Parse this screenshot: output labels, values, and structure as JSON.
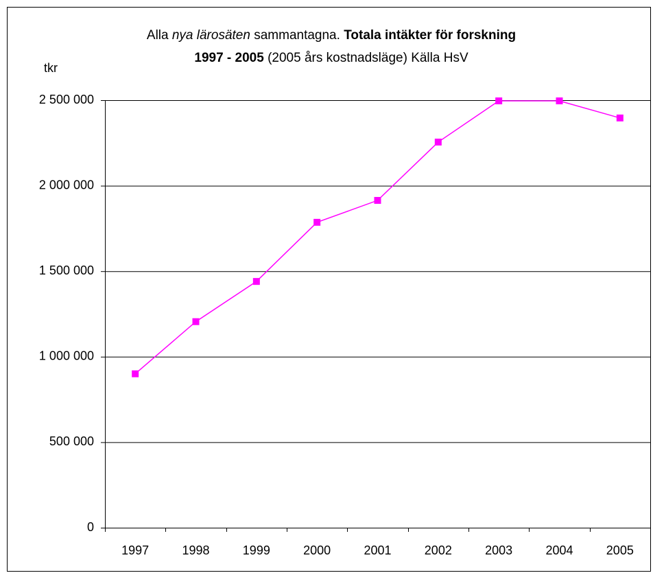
{
  "chart_data": {
    "type": "line",
    "title": [
      [
        {
          "text": "Alla ",
          "style": "normal"
        },
        {
          "text": "nya lärosäten",
          "style": "italic"
        },
        {
          "text": " sammantagna. ",
          "style": "normal"
        },
        {
          "text": "Totala intäkter för forskning",
          "style": "bold"
        }
      ],
      [
        {
          "text": "1997 - 2005",
          "style": "bold"
        },
        {
          "text": " (2005 års kostnadsläge) Källa HsV",
          "style": "normal"
        }
      ]
    ],
    "y_label": "tkr",
    "categories": [
      "1997",
      "1998",
      "1999",
      "2000",
      "2001",
      "2002",
      "2003",
      "2004",
      "2005"
    ],
    "series": [
      {
        "name": "Totala intäkter för forskning",
        "color": "#ff00ff",
        "values": [
          900000,
          1205000,
          1440000,
          1786000,
          1914000,
          2255000,
          2496000,
          2496000,
          2396000
        ]
      }
    ],
    "ylim": [
      0,
      2500000
    ],
    "yticks": [
      0,
      {
        "value": 500000,
        "label": "500 000"
      },
      {
        "value": 1000000,
        "label": "1 000 000"
      },
      {
        "value": 1500000,
        "label": "1 500 000"
      },
      {
        "value": 2000000,
        "label": "2 000 000"
      },
      {
        "value": 2500000,
        "label": "2 500 000"
      }
    ],
    "grid": true
  }
}
